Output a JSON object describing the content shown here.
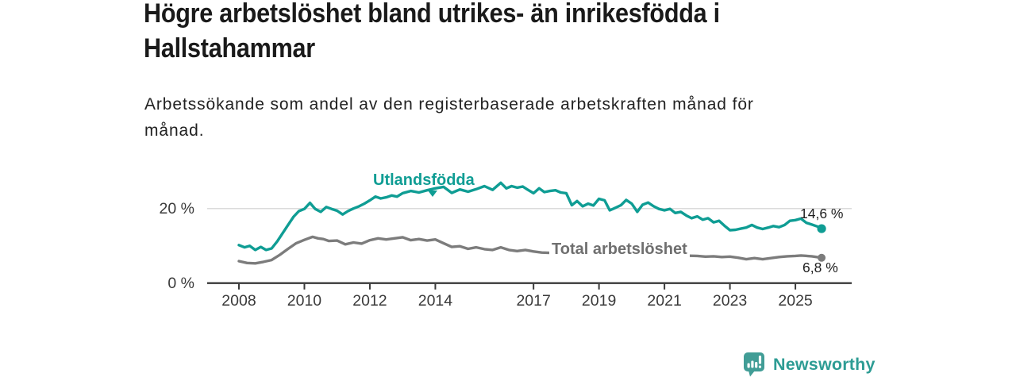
{
  "header": {
    "title_lines": [
      "Högre arbetslöshet bland utrikes- än inrikesfödda i",
      "Hallstahammar"
    ],
    "subtitle_lines": [
      "Arbetssökande som andel av den registerbaserade arbetskraften månad för",
      "månad."
    ]
  },
  "chart_data": {
    "type": "line",
    "title": "Högre arbetslöshet bland utrikes- än inrikesfödda i Hallstahammar",
    "subtitle": "Arbetssökande som andel av den registerbaserade arbetskraften månad för månad.",
    "unit": "%",
    "x_ticks": [
      2008,
      2010,
      2012,
      2014,
      2017,
      2019,
      2021,
      2023,
      2025
    ],
    "x_range": [
      2007.6,
      2026.4
    ],
    "y_ticks": [
      {
        "value": 0,
        "label": "0 %"
      },
      {
        "value": 20,
        "label": "20 %"
      }
    ],
    "y_range": [
      0,
      28
    ],
    "grid": "horizontal line at 20% only",
    "legend": "inline labels on lines",
    "colors": {
      "foreign_born": "#0f9d94",
      "total": "#7c7c7c",
      "axis": "#3a3a3a",
      "gridline": "#dbdbdb"
    },
    "series": [
      {
        "name": "Utlandsfödda",
        "color": "#0f9d94",
        "end_label": "14,6 %",
        "end_value": 14.6,
        "points": [
          [
            2008.0,
            10.2
          ],
          [
            2008.17,
            9.6
          ],
          [
            2008.33,
            10.0
          ],
          [
            2008.5,
            8.9
          ],
          [
            2008.67,
            9.7
          ],
          [
            2008.83,
            8.9
          ],
          [
            2009.0,
            9.3
          ],
          [
            2009.17,
            11.2
          ],
          [
            2009.33,
            13.3
          ],
          [
            2009.5,
            15.6
          ],
          [
            2009.67,
            17.8
          ],
          [
            2009.83,
            19.3
          ],
          [
            2010.0,
            19.9
          ],
          [
            2010.17,
            21.5
          ],
          [
            2010.33,
            19.9
          ],
          [
            2010.5,
            19.1
          ],
          [
            2010.67,
            20.4
          ],
          [
            2010.83,
            19.9
          ],
          [
            2011.0,
            19.4
          ],
          [
            2011.17,
            18.4
          ],
          [
            2011.33,
            19.3
          ],
          [
            2011.5,
            20.0
          ],
          [
            2011.67,
            20.6
          ],
          [
            2011.83,
            21.3
          ],
          [
            2012.0,
            22.2
          ],
          [
            2012.17,
            23.2
          ],
          [
            2012.33,
            22.7
          ],
          [
            2012.5,
            23.0
          ],
          [
            2012.67,
            23.5
          ],
          [
            2012.83,
            23.2
          ],
          [
            2013.0,
            24.1
          ],
          [
            2013.25,
            24.7
          ],
          [
            2013.5,
            24.3
          ],
          [
            2013.75,
            24.9
          ],
          [
            2014.0,
            25.4
          ],
          [
            2014.25,
            25.8
          ],
          [
            2014.5,
            24.2
          ],
          [
            2014.75,
            25.1
          ],
          [
            2015.0,
            24.5
          ],
          [
            2015.25,
            25.2
          ],
          [
            2015.5,
            26.0
          ],
          [
            2015.75,
            25.0
          ],
          [
            2016.0,
            26.9
          ],
          [
            2016.17,
            25.4
          ],
          [
            2016.33,
            26.0
          ],
          [
            2016.5,
            25.6
          ],
          [
            2016.67,
            25.9
          ],
          [
            2016.83,
            25.0
          ],
          [
            2017.0,
            24.1
          ],
          [
            2017.17,
            25.4
          ],
          [
            2017.33,
            24.4
          ],
          [
            2017.5,
            24.7
          ],
          [
            2017.67,
            24.9
          ],
          [
            2017.83,
            24.3
          ],
          [
            2018.0,
            24.1
          ],
          [
            2018.17,
            20.9
          ],
          [
            2018.33,
            22.0
          ],
          [
            2018.5,
            20.6
          ],
          [
            2018.67,
            21.3
          ],
          [
            2018.83,
            20.8
          ],
          [
            2019.0,
            22.6
          ],
          [
            2019.17,
            22.2
          ],
          [
            2019.33,
            19.5
          ],
          [
            2019.5,
            20.2
          ],
          [
            2019.67,
            20.9
          ],
          [
            2019.83,
            22.3
          ],
          [
            2020.0,
            21.3
          ],
          [
            2020.17,
            19.1
          ],
          [
            2020.33,
            21.0
          ],
          [
            2020.5,
            21.6
          ],
          [
            2020.67,
            20.6
          ],
          [
            2020.83,
            19.9
          ],
          [
            2021.0,
            19.5
          ],
          [
            2021.17,
            19.9
          ],
          [
            2021.33,
            18.8
          ],
          [
            2021.5,
            19.1
          ],
          [
            2021.67,
            18.1
          ],
          [
            2021.83,
            17.4
          ],
          [
            2022.0,
            17.9
          ],
          [
            2022.17,
            17.0
          ],
          [
            2022.33,
            17.4
          ],
          [
            2022.5,
            16.3
          ],
          [
            2022.67,
            16.7
          ],
          [
            2022.83,
            15.4
          ],
          [
            2023.0,
            14.2
          ],
          [
            2023.17,
            14.3
          ],
          [
            2023.33,
            14.6
          ],
          [
            2023.5,
            14.9
          ],
          [
            2023.67,
            15.6
          ],
          [
            2023.83,
            14.9
          ],
          [
            2024.0,
            14.5
          ],
          [
            2024.17,
            14.9
          ],
          [
            2024.33,
            15.3
          ],
          [
            2024.5,
            15.0
          ],
          [
            2024.67,
            15.6
          ],
          [
            2024.83,
            16.7
          ],
          [
            2025.0,
            16.9
          ],
          [
            2025.17,
            17.3
          ],
          [
            2025.33,
            16.2
          ],
          [
            2025.5,
            15.7
          ],
          [
            2025.67,
            15.2
          ],
          [
            2025.8,
            14.6
          ]
        ]
      },
      {
        "name": "Total arbetslöshet",
        "color": "#7c7c7c",
        "end_label": "6,8 %",
        "end_value": 6.8,
        "points": [
          [
            2008.0,
            5.9
          ],
          [
            2008.25,
            5.4
          ],
          [
            2008.5,
            5.3
          ],
          [
            2008.75,
            5.7
          ],
          [
            2009.0,
            6.2
          ],
          [
            2009.25,
            7.6
          ],
          [
            2009.5,
            9.2
          ],
          [
            2009.75,
            10.7
          ],
          [
            2010.0,
            11.6
          ],
          [
            2010.25,
            12.4
          ],
          [
            2010.42,
            12.0
          ],
          [
            2010.58,
            11.8
          ],
          [
            2010.75,
            11.3
          ],
          [
            2011.0,
            11.4
          ],
          [
            2011.25,
            10.4
          ],
          [
            2011.5,
            10.9
          ],
          [
            2011.75,
            10.6
          ],
          [
            2012.0,
            11.5
          ],
          [
            2012.25,
            12.0
          ],
          [
            2012.5,
            11.7
          ],
          [
            2012.75,
            12.0
          ],
          [
            2013.0,
            12.3
          ],
          [
            2013.25,
            11.5
          ],
          [
            2013.5,
            11.8
          ],
          [
            2013.75,
            11.4
          ],
          [
            2014.0,
            11.7
          ],
          [
            2014.25,
            10.7
          ],
          [
            2014.5,
            9.7
          ],
          [
            2014.75,
            9.9
          ],
          [
            2015.0,
            9.2
          ],
          [
            2015.25,
            9.6
          ],
          [
            2015.5,
            9.1
          ],
          [
            2015.75,
            8.9
          ],
          [
            2016.0,
            9.6
          ],
          [
            2016.25,
            8.9
          ],
          [
            2016.5,
            8.6
          ],
          [
            2016.75,
            8.9
          ],
          [
            2017.0,
            8.5
          ],
          [
            2017.25,
            8.2
          ],
          [
            2017.5,
            8.1
          ],
          [
            2018.0,
            7.9
          ],
          [
            2018.5,
            7.7
          ],
          [
            2019.0,
            7.5
          ],
          [
            2019.5,
            7.5
          ],
          [
            2020.0,
            7.7
          ],
          [
            2020.5,
            8.1
          ],
          [
            2021.0,
            7.9
          ],
          [
            2021.25,
            7.6
          ],
          [
            2021.5,
            7.4
          ],
          [
            2022.0,
            7.3
          ],
          [
            2022.25,
            7.1
          ],
          [
            2022.5,
            7.2
          ],
          [
            2022.75,
            7.0
          ],
          [
            2023.0,
            7.1
          ],
          [
            2023.25,
            6.8
          ],
          [
            2023.5,
            6.4
          ],
          [
            2023.75,
            6.7
          ],
          [
            2024.0,
            6.4
          ],
          [
            2024.25,
            6.7
          ],
          [
            2024.5,
            7.0
          ],
          [
            2024.75,
            7.2
          ],
          [
            2025.0,
            7.3
          ],
          [
            2025.17,
            7.4
          ],
          [
            2025.5,
            7.2
          ],
          [
            2025.8,
            6.8
          ]
        ]
      }
    ]
  },
  "footer": {
    "brand": "Newsworthy",
    "brand_color": "#2d9c94",
    "logo_icon": "bar-chart-speech-bubble-icon"
  }
}
